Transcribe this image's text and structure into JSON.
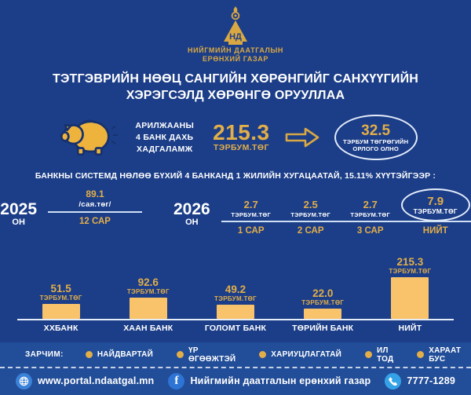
{
  "colors": {
    "background": "#1c3e88",
    "bottom_band": "#224d98",
    "gold": "#e2ae49",
    "bar_fill": "#f8c36a",
    "white": "#ffffff",
    "icon_globe": "#3b82d9",
    "icon_facebook": "#2d74d4",
    "icon_phone": "#35a2e8"
  },
  "header": {
    "emblem_letters": "НД",
    "org_line1": "НИЙГМИЙН ДААТГАЛЫН",
    "org_line2": "ЕРӨНХИЙ ГАЗАР"
  },
  "title": {
    "line1": "ТЭТГЭВРИЙН НӨӨЦ САНГИЙН ХӨРӨНГИЙГ САНХҮҮГИЙН",
    "line2": "ХЭРЭГСЭЛД ХӨРӨНГӨ ОРУУЛЛАА"
  },
  "deposit": {
    "label_line1": "АРИЛЖААНЫ",
    "label_line2": "4 БАНК ДАХЬ",
    "label_line3": "ХАДГАЛАМЖ",
    "amount": "215.3",
    "unit": "ТЭРБУМ.ТӨГ",
    "income_value": "32.5",
    "income_label_line1": "ТЭРБУМ ТӨГРӨГИЙН",
    "income_label_line2": "ОРЛОГО ОЛНО"
  },
  "condition": "БАНКНЫ СИСТЕМД НӨЛӨӨ БҮХИЙ 4 БАНКАНД  1 ЖИЛИЙН ХУГАЦААТАЙ, 15.11% ХҮҮТЭЙГЭЭР :",
  "timeline": {
    "y2025": {
      "year": "2025",
      "year_suffix": "ОН",
      "value": "89.1",
      "unit": "/сая.төг/",
      "period": "12 САР"
    },
    "y2026": {
      "year": "2026",
      "year_suffix": "ОН",
      "months": [
        {
          "value": "2.7",
          "unit": "ТЭРБУМ.ТӨГ",
          "period": "1 САР"
        },
        {
          "value": "2.5",
          "unit": "ТЭРБУМ.ТӨГ",
          "period": "2 САР"
        },
        {
          "value": "2.7",
          "unit": "ТЭРБУМ.ТӨГ",
          "period": "3 САР"
        }
      ],
      "total": {
        "value": "7.9",
        "unit": "ТЭРБУМ.ТӨГ",
        "label": "НИЙТ"
      }
    }
  },
  "chart_data": {
    "type": "bar",
    "title": "",
    "categories": [
      "ХХБАНК",
      "ХААН БАНК",
      "ГОЛОМТ БАНК",
      "ТӨРИЙН БАНК",
      "НИЙТ"
    ],
    "values": [
      51.5,
      92.6,
      49.2,
      22.0,
      215.3
    ],
    "value_labels": [
      "51.5",
      "92.6",
      "49.2",
      "22.0",
      "215.3"
    ],
    "unit": "ТЭРБУМ.ТӨГ",
    "xlabel": "",
    "ylabel": "",
    "ylim": [
      0,
      215.3
    ],
    "grid": false,
    "legend_position": "none",
    "bar_color": "#f8c36a"
  },
  "legend": {
    "title": "ЗАРЧИМ:",
    "items": [
      "НАЙДВАРТАЙ",
      "ҮР ӨГӨӨЖТЭЙ",
      "ХАРИУЦЛАГАТАЙ",
      "ИЛ ТОД",
      "ХАРААТ БУС"
    ]
  },
  "footer": {
    "website": "www.portal.ndaatgal.mn",
    "facebook": "Нийгмийн даатгалын ерөнхий газар",
    "phone": "7777-1289"
  }
}
